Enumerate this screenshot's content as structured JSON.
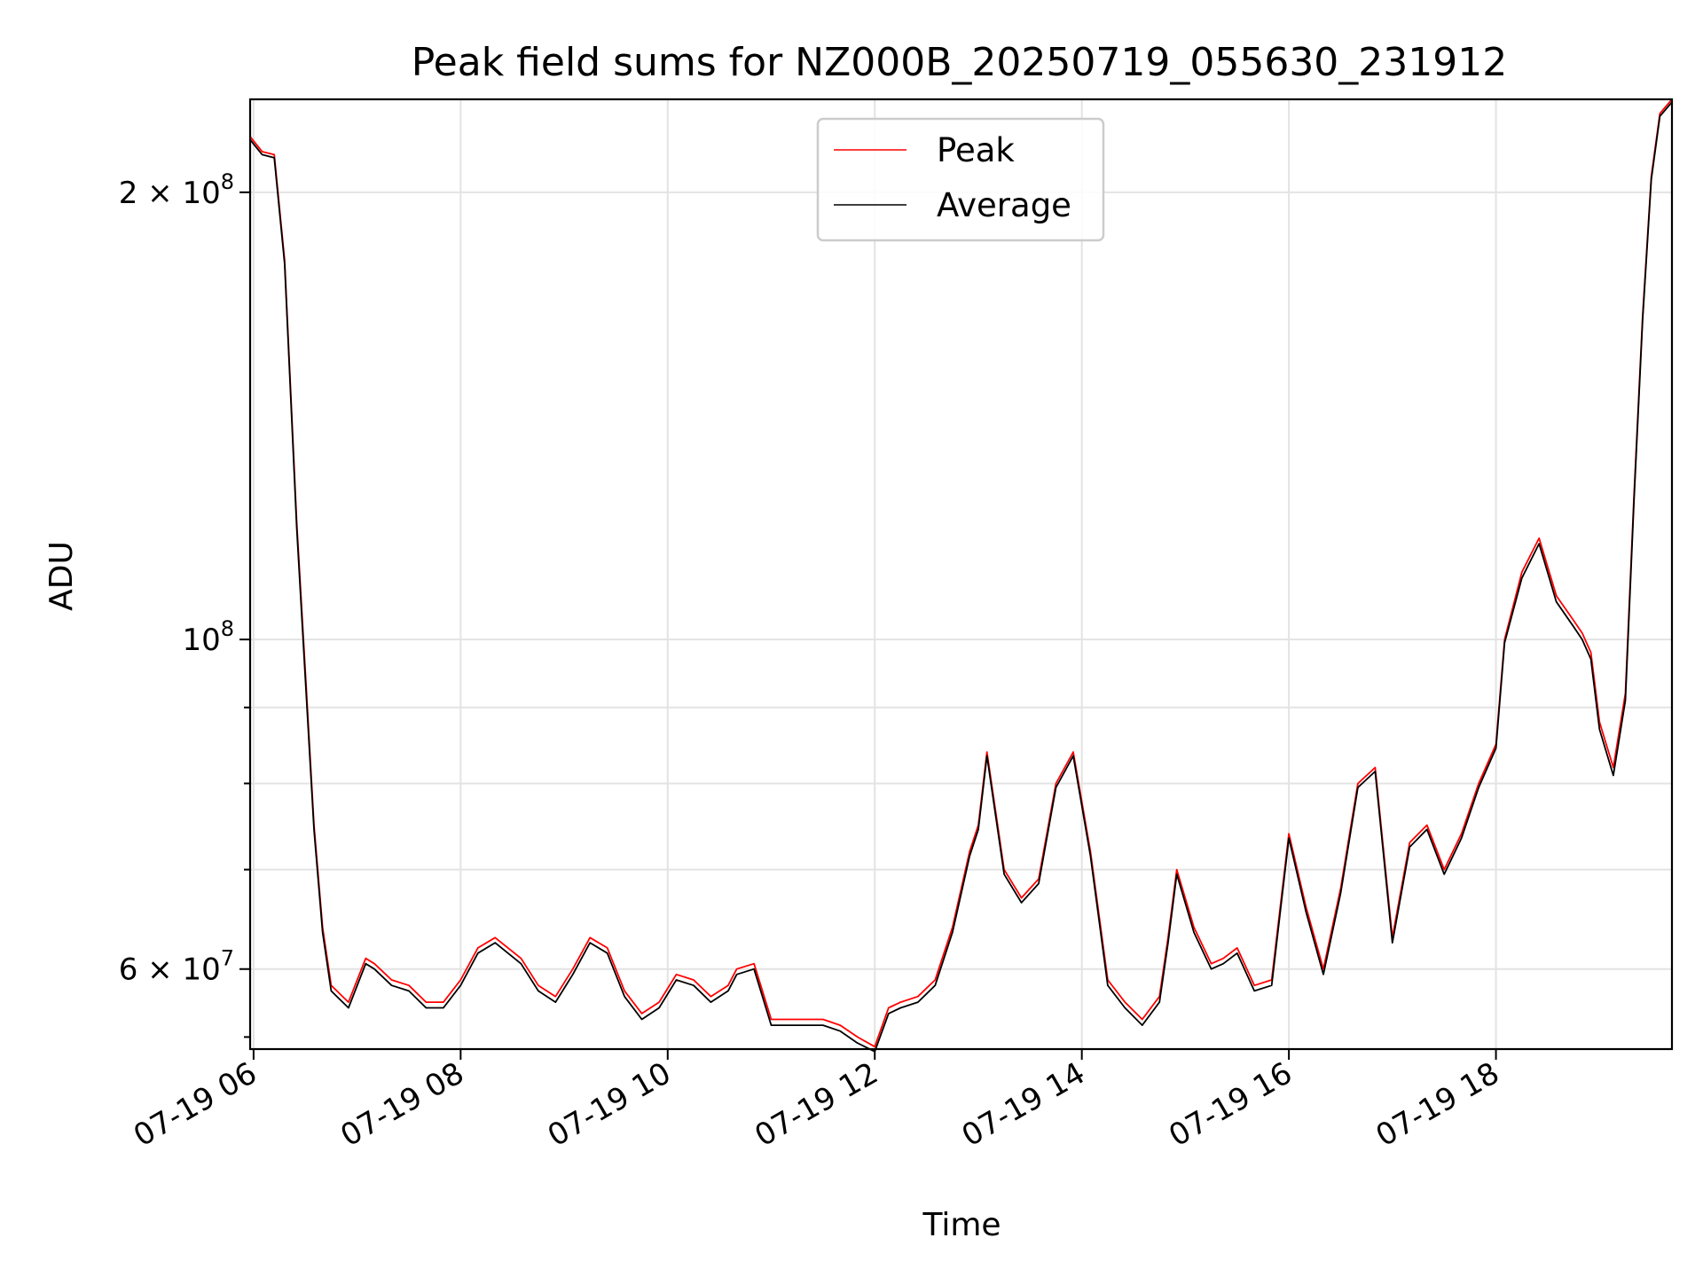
{
  "chart_data": {
    "type": "line",
    "title": "Peak field sums for NZ000B_20250719_055630_231912",
    "xlabel": "Time",
    "ylabel": "ADU",
    "x_scale": "time",
    "y_scale": "log",
    "xlim": [
      "2025-07-19T05:58:00",
      "2025-07-19T19:42:00"
    ],
    "ylim": [
      53000000,
      231000000
    ],
    "x_ticks": [
      {
        "value": "2025-07-19T06:00:00",
        "label": "07-19 06"
      },
      {
        "value": "2025-07-19T08:00:00",
        "label": "07-19 08"
      },
      {
        "value": "2025-07-19T10:00:00",
        "label": "07-19 10"
      },
      {
        "value": "2025-07-19T12:00:00",
        "label": "07-19 12"
      },
      {
        "value": "2025-07-19T14:00:00",
        "label": "07-19 14"
      },
      {
        "value": "2025-07-19T16:00:00",
        "label": "07-19 16"
      },
      {
        "value": "2025-07-19T18:00:00",
        "label": "07-19 18"
      }
    ],
    "y_major_ticks": [
      {
        "value": 60000000,
        "mantissa": "6",
        "exponent": "7"
      },
      {
        "value": 100000000,
        "mantissa": "",
        "exponent": "8"
      },
      {
        "value": 200000000,
        "mantissa": "2",
        "exponent": "8"
      }
    ],
    "y_minor_ticks": [
      54000000,
      70000000,
      80000000,
      90000000
    ],
    "grid": true,
    "legend_position": "upper-center",
    "series": [
      {
        "name": "Peak",
        "color": "#ff0000",
        "x": [
          "2025-07-19T05:58:00",
          "2025-07-19T06:05:00",
          "2025-07-19T06:12:00",
          "2025-07-19T06:18:00",
          "2025-07-19T06:25:00",
          "2025-07-19T06:30:00",
          "2025-07-19T06:35:00",
          "2025-07-19T06:40:00",
          "2025-07-19T06:45:00",
          "2025-07-19T06:55:00",
          "2025-07-19T07:05:00",
          "2025-07-19T07:10:00",
          "2025-07-19T07:20:00",
          "2025-07-19T07:30:00",
          "2025-07-19T07:40:00",
          "2025-07-19T07:50:00",
          "2025-07-19T08:00:00",
          "2025-07-19T08:10:00",
          "2025-07-19T08:20:00",
          "2025-07-19T08:35:00",
          "2025-07-19T08:45:00",
          "2025-07-19T08:55:00",
          "2025-07-19T09:05:00",
          "2025-07-19T09:15:00",
          "2025-07-19T09:25:00",
          "2025-07-19T09:35:00",
          "2025-07-19T09:45:00",
          "2025-07-19T09:55:00",
          "2025-07-19T10:05:00",
          "2025-07-19T10:15:00",
          "2025-07-19T10:25:00",
          "2025-07-19T10:35:00",
          "2025-07-19T10:40:00",
          "2025-07-19T10:50:00",
          "2025-07-19T11:00:00",
          "2025-07-19T11:10:00",
          "2025-07-19T11:20:00",
          "2025-07-19T11:30:00",
          "2025-07-19T11:40:00",
          "2025-07-19T11:50:00",
          "2025-07-19T12:00:00",
          "2025-07-19T12:08:00",
          "2025-07-19T12:15:00",
          "2025-07-19T12:25:00",
          "2025-07-19T12:35:00",
          "2025-07-19T12:45:00",
          "2025-07-19T12:55:00",
          "2025-07-19T13:00:00",
          "2025-07-19T13:05:00",
          "2025-07-19T13:15:00",
          "2025-07-19T13:25:00",
          "2025-07-19T13:35:00",
          "2025-07-19T13:45:00",
          "2025-07-19T13:55:00",
          "2025-07-19T14:05:00",
          "2025-07-19T14:15:00",
          "2025-07-19T14:25:00",
          "2025-07-19T14:35:00",
          "2025-07-19T14:45:00",
          "2025-07-19T14:50:00",
          "2025-07-19T14:55:00",
          "2025-07-19T15:05:00",
          "2025-07-19T15:15:00",
          "2025-07-19T15:22:00",
          "2025-07-19T15:30:00",
          "2025-07-19T15:40:00",
          "2025-07-19T15:50:00",
          "2025-07-19T16:00:00",
          "2025-07-19T16:10:00",
          "2025-07-19T16:20:00",
          "2025-07-19T16:30:00",
          "2025-07-19T16:40:00",
          "2025-07-19T16:50:00",
          "2025-07-19T17:00:00",
          "2025-07-19T17:10:00",
          "2025-07-19T17:20:00",
          "2025-07-19T17:30:00",
          "2025-07-19T17:40:00",
          "2025-07-19T17:50:00",
          "2025-07-19T18:00:00",
          "2025-07-19T18:05:00",
          "2025-07-19T18:15:00",
          "2025-07-19T18:25:00",
          "2025-07-19T18:35:00",
          "2025-07-19T18:45:00",
          "2025-07-19T18:50:00",
          "2025-07-19T18:55:00",
          "2025-07-19T19:00:00",
          "2025-07-19T19:08:00",
          "2025-07-19T19:15:00",
          "2025-07-19T19:20:00",
          "2025-07-19T19:25:00",
          "2025-07-19T19:30:00",
          "2025-07-19T19:35:00",
          "2025-07-19T19:42:00"
        ],
        "values": [
          218000000,
          213000000,
          212000000,
          180000000,
          120000000,
          95000000,
          75000000,
          64000000,
          58500000,
          57000000,
          61000000,
          60500000,
          59000000,
          58500000,
          57000000,
          57000000,
          59000000,
          62000000,
          63000000,
          61000000,
          58500000,
          57500000,
          60000000,
          63000000,
          62000000,
          58000000,
          56000000,
          57000000,
          59500000,
          59000000,
          57500000,
          58500000,
          60000000,
          60500000,
          55500000,
          55500000,
          55500000,
          55500000,
          55000000,
          54000000,
          53200000,
          56500000,
          57000000,
          57500000,
          59000000,
          64000000,
          72000000,
          75000000,
          84000000,
          70000000,
          67000000,
          69000000,
          80000000,
          84000000,
          72000000,
          59000000,
          57000000,
          55500000,
          57500000,
          63000000,
          70000000,
          64000000,
          60500000,
          61000000,
          62000000,
          58500000,
          59000000,
          74000000,
          66000000,
          60000000,
          68000000,
          80000000,
          82000000,
          63000000,
          73000000,
          75000000,
          70000000,
          74000000,
          80000000,
          85000000,
          100000000,
          111000000,
          117000000,
          107000000,
          103000000,
          101000000,
          98000000,
          88000000,
          82000000,
          92000000,
          125000000,
          165000000,
          205000000,
          226000000,
          231000000
        ]
      },
      {
        "name": "Average",
        "color": "#000000",
        "x": [
          "2025-07-19T05:58:00",
          "2025-07-19T06:05:00",
          "2025-07-19T06:12:00",
          "2025-07-19T06:18:00",
          "2025-07-19T06:25:00",
          "2025-07-19T06:30:00",
          "2025-07-19T06:35:00",
          "2025-07-19T06:40:00",
          "2025-07-19T06:45:00",
          "2025-07-19T06:55:00",
          "2025-07-19T07:05:00",
          "2025-07-19T07:10:00",
          "2025-07-19T07:20:00",
          "2025-07-19T07:30:00",
          "2025-07-19T07:40:00",
          "2025-07-19T07:50:00",
          "2025-07-19T08:00:00",
          "2025-07-19T08:10:00",
          "2025-07-19T08:20:00",
          "2025-07-19T08:35:00",
          "2025-07-19T08:45:00",
          "2025-07-19T08:55:00",
          "2025-07-19T09:05:00",
          "2025-07-19T09:15:00",
          "2025-07-19T09:25:00",
          "2025-07-19T09:35:00",
          "2025-07-19T09:45:00",
          "2025-07-19T09:55:00",
          "2025-07-19T10:05:00",
          "2025-07-19T10:15:00",
          "2025-07-19T10:25:00",
          "2025-07-19T10:35:00",
          "2025-07-19T10:40:00",
          "2025-07-19T10:50:00",
          "2025-07-19T11:00:00",
          "2025-07-19T11:10:00",
          "2025-07-19T11:20:00",
          "2025-07-19T11:30:00",
          "2025-07-19T11:40:00",
          "2025-07-19T11:50:00",
          "2025-07-19T12:00:00",
          "2025-07-19T12:08:00",
          "2025-07-19T12:15:00",
          "2025-07-19T12:25:00",
          "2025-07-19T12:35:00",
          "2025-07-19T12:45:00",
          "2025-07-19T12:55:00",
          "2025-07-19T13:00:00",
          "2025-07-19T13:05:00",
          "2025-07-19T13:15:00",
          "2025-07-19T13:25:00",
          "2025-07-19T13:35:00",
          "2025-07-19T13:45:00",
          "2025-07-19T13:55:00",
          "2025-07-19T14:05:00",
          "2025-07-19T14:15:00",
          "2025-07-19T14:25:00",
          "2025-07-19T14:35:00",
          "2025-07-19T14:45:00",
          "2025-07-19T14:50:00",
          "2025-07-19T14:55:00",
          "2025-07-19T15:05:00",
          "2025-07-19T15:15:00",
          "2025-07-19T15:22:00",
          "2025-07-19T15:30:00",
          "2025-07-19T15:40:00",
          "2025-07-19T15:50:00",
          "2025-07-19T16:00:00",
          "2025-07-19T16:10:00",
          "2025-07-19T16:20:00",
          "2025-07-19T16:30:00",
          "2025-07-19T16:40:00",
          "2025-07-19T16:50:00",
          "2025-07-19T17:00:00",
          "2025-07-19T17:10:00",
          "2025-07-19T17:20:00",
          "2025-07-19T17:30:00",
          "2025-07-19T17:40:00",
          "2025-07-19T17:50:00",
          "2025-07-19T18:00:00",
          "2025-07-19T18:05:00",
          "2025-07-19T18:15:00",
          "2025-07-19T18:25:00",
          "2025-07-19T18:35:00",
          "2025-07-19T18:45:00",
          "2025-07-19T18:50:00",
          "2025-07-19T18:55:00",
          "2025-07-19T19:00:00",
          "2025-07-19T19:08:00",
          "2025-07-19T19:15:00",
          "2025-07-19T19:20:00",
          "2025-07-19T19:25:00",
          "2025-07-19T19:30:00",
          "2025-07-19T19:35:00",
          "2025-07-19T19:42:00"
        ],
        "values": [
          217000000,
          212000000,
          211000000,
          179000000,
          119000000,
          94000000,
          74500000,
          63500000,
          58000000,
          56500000,
          60500000,
          60000000,
          58500000,
          58000000,
          56500000,
          56500000,
          58500000,
          61500000,
          62500000,
          60500000,
          58000000,
          57000000,
          59500000,
          62500000,
          61500000,
          57500000,
          55500000,
          56500000,
          59000000,
          58500000,
          57000000,
          58000000,
          59500000,
          60000000,
          55000000,
          55000000,
          55000000,
          55000000,
          54500000,
          53500000,
          52800000,
          56000000,
          56500000,
          57000000,
          58500000,
          63500000,
          71500000,
          74500000,
          83500000,
          69500000,
          66500000,
          68500000,
          79500000,
          83500000,
          71500000,
          58500000,
          56500000,
          55000000,
          57000000,
          62500000,
          69500000,
          63500000,
          60000000,
          60500000,
          61500000,
          58000000,
          58500000,
          73500000,
          65500000,
          59500000,
          67500000,
          79500000,
          81500000,
          62500000,
          72500000,
          74500000,
          69500000,
          73500000,
          79500000,
          84500000,
          99500000,
          110000000,
          116000000,
          106000000,
          102000000,
          100000000,
          97000000,
          87000000,
          81000000,
          91000000,
          124000000,
          164000000,
          204000000,
          225000000,
          230000000
        ]
      }
    ]
  }
}
